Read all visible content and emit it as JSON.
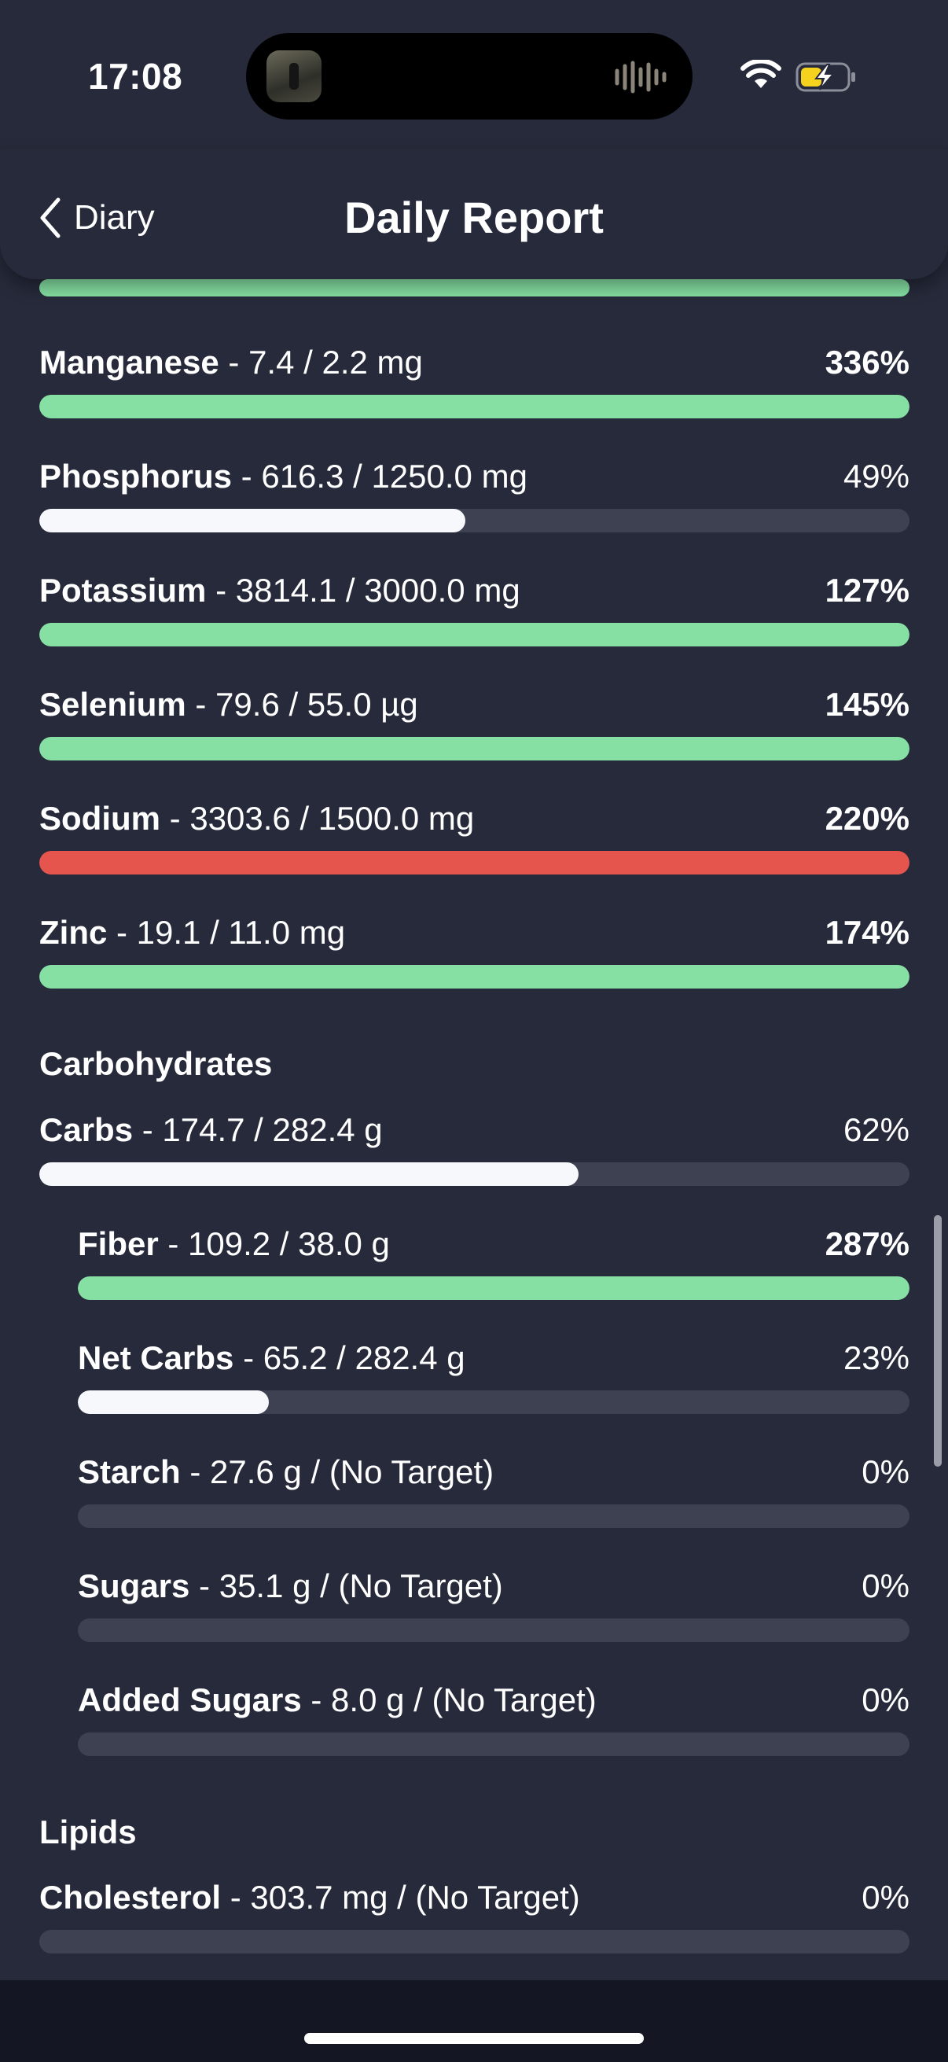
{
  "status_bar": {
    "time": "17:08"
  },
  "header": {
    "back_label": "Diary",
    "title": "Daily Report"
  },
  "colors": {
    "background": "#262a3a",
    "good": "#86e0a3",
    "over_limit": "#e5544d",
    "under": "#f7f8fb",
    "track": "#3e4152"
  },
  "minerals": [
    {
      "name": "Manganese",
      "detail": "- 7.4 / 2.2 mg",
      "percent": "336%",
      "fill": 1.0,
      "color": "green",
      "bold": true
    },
    {
      "name": "Phosphorus",
      "detail": "- 616.3 / 1250.0 mg",
      "percent": "49%",
      "fill": 0.49,
      "color": "white",
      "bold": false
    },
    {
      "name": "Potassium",
      "detail": "- 3814.1 / 3000.0 mg",
      "percent": "127%",
      "fill": 1.0,
      "color": "green",
      "bold": true
    },
    {
      "name": "Selenium",
      "detail": "- 79.6 / 55.0 µg",
      "percent": "145%",
      "fill": 1.0,
      "color": "green",
      "bold": true
    },
    {
      "name": "Sodium",
      "detail": "- 3303.6 / 1500.0 mg",
      "percent": "220%",
      "fill": 1.0,
      "color": "red",
      "bold": true
    },
    {
      "name": "Zinc",
      "detail": "- 19.1 / 11.0 mg",
      "percent": "174%",
      "fill": 1.0,
      "color": "green",
      "bold": true
    }
  ],
  "carbohydrates": {
    "title": "Carbohydrates",
    "items": [
      {
        "name": "Carbs",
        "detail": "- 174.7 / 282.4 g",
        "percent": "62%",
        "fill": 0.62,
        "color": "white",
        "bold": false,
        "indent": false
      },
      {
        "name": "Fiber",
        "detail": "- 109.2 / 38.0 g",
        "percent": "287%",
        "fill": 1.0,
        "color": "green",
        "bold": true,
        "indent": true
      },
      {
        "name": "Net Carbs",
        "detail": "- 65.2 / 282.4 g",
        "percent": "23%",
        "fill": 0.23,
        "color": "white",
        "bold": false,
        "indent": true
      },
      {
        "name": "Starch",
        "detail": "- 27.6 g / (No Target)",
        "percent": "0%",
        "fill": 0,
        "color": "white",
        "bold": false,
        "indent": true
      },
      {
        "name": "Sugars",
        "detail": "- 35.1 g / (No Target)",
        "percent": "0%",
        "fill": 0,
        "color": "white",
        "bold": false,
        "indent": true
      },
      {
        "name": "Added Sugars",
        "detail": "- 8.0 g / (No Target)",
        "percent": "0%",
        "fill": 0,
        "color": "white",
        "bold": false,
        "indent": true
      }
    ]
  },
  "lipids": {
    "title": "Lipids",
    "items": [
      {
        "name": "Cholesterol",
        "detail": "- 303.7 mg / (No Target)",
        "percent": "0%",
        "fill": 0,
        "color": "white",
        "bold": false,
        "indent": false
      }
    ]
  }
}
